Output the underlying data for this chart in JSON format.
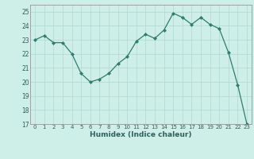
{
  "x": [
    0,
    1,
    2,
    3,
    4,
    5,
    6,
    7,
    8,
    9,
    10,
    11,
    12,
    13,
    14,
    15,
    16,
    17,
    18,
    19,
    20,
    21,
    22,
    23
  ],
  "y": [
    23.0,
    23.3,
    22.8,
    22.8,
    22.0,
    20.6,
    20.0,
    20.2,
    20.6,
    21.3,
    21.8,
    22.9,
    23.4,
    23.1,
    23.7,
    24.9,
    24.6,
    24.1,
    24.6,
    24.1,
    23.8,
    22.1,
    19.8,
    17.0
  ],
  "xlabel": "Humidex (Indice chaleur)",
  "ylim": [
    17,
    25.5
  ],
  "yticks": [
    17,
    18,
    19,
    20,
    21,
    22,
    23,
    24,
    25
  ],
  "xticks": [
    0,
    1,
    2,
    3,
    4,
    5,
    6,
    7,
    8,
    9,
    10,
    11,
    12,
    13,
    14,
    15,
    16,
    17,
    18,
    19,
    20,
    21,
    22,
    23
  ],
  "line_color": "#2e7d6e",
  "marker": "D",
  "marker_size": 2.0,
  "bg_color": "#ceeee8",
  "grid_color": "#b0d8d0",
  "fig_bg": "#ceeee8",
  "tick_color": "#2e6060",
  "label_color": "#2e6060"
}
